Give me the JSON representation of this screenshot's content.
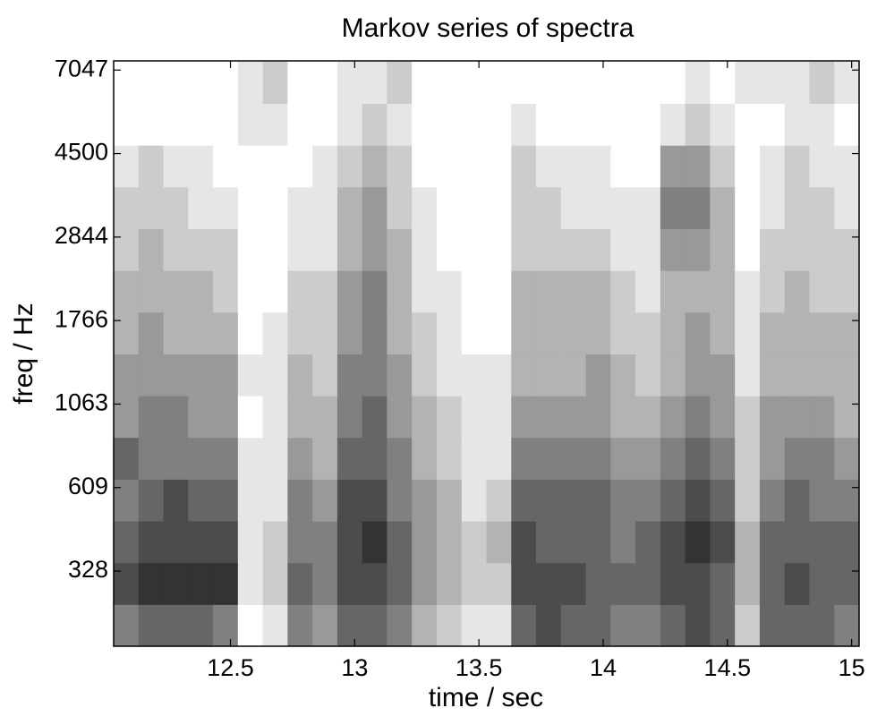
{
  "chart_data": {
    "type": "heatmap",
    "title": "Markov series of spectra",
    "xlabel": "time / sec",
    "ylabel": "freq / Hz",
    "colormap": "gray_r",
    "xlim": [
      12.03,
      15.03
    ],
    "xticks": [
      12.5,
      13,
      13.5,
      14,
      14.5,
      15
    ],
    "ylim": [
      0,
      7.01
    ],
    "yticks": [
      {
        "value": 0.9,
        "label": "328"
      },
      {
        "value": 1.9,
        "label": "609"
      },
      {
        "value": 2.9,
        "label": "1063"
      },
      {
        "value": 3.9,
        "label": "1766"
      },
      {
        "value": 4.9,
        "label": "2844"
      },
      {
        "value": 5.9,
        "label": "4500"
      },
      {
        "value": 6.9,
        "label": "7047"
      }
    ],
    "zlim": [
      0,
      9
    ],
    "x": [
      12.08,
      12.18,
      12.28,
      12.38,
      12.48,
      12.58,
      12.68,
      12.78,
      12.88,
      12.98,
      13.08,
      13.18,
      13.28,
      13.38,
      13.48,
      13.58,
      13.68,
      13.78,
      13.88,
      13.98,
      14.08,
      14.18,
      14.28,
      14.38,
      14.48,
      14.58,
      14.68,
      14.78,
      14.88,
      14.98
    ],
    "y": [
      0.25,
      0.75,
      1.25,
      1.75,
      2.25,
      2.75,
      3.25,
      3.75,
      4.25,
      4.75,
      5.25,
      5.75,
      6.25,
      6.75
    ],
    "z": [
      [
        5,
        7,
        6,
        5,
        6,
        4,
        4,
        3,
        3,
        2,
        2,
        1,
        0,
        0
      ],
      [
        6,
        8,
        7,
        6,
        5,
        5,
        4,
        4,
        3,
        3,
        2,
        2,
        0,
        0
      ],
      [
        6,
        8,
        7,
        7,
        5,
        5,
        4,
        3,
        3,
        2,
        2,
        1,
        0,
        0
      ],
      [
        6,
        8,
        7,
        6,
        5,
        4,
        4,
        3,
        3,
        2,
        1,
        1,
        0,
        0
      ],
      [
        5,
        8,
        7,
        6,
        5,
        4,
        4,
        3,
        2,
        2,
        1,
        0,
        0,
        0
      ],
      [
        0,
        1,
        1,
        1,
        1,
        0,
        1,
        0,
        0,
        0,
        0,
        0,
        1,
        1
      ],
      [
        1,
        2,
        2,
        1,
        1,
        1,
        1,
        1,
        0,
        0,
        0,
        0,
        1,
        2
      ],
      [
        5,
        6,
        5,
        5,
        4,
        3,
        3,
        2,
        2,
        1,
        1,
        0,
        0,
        0
      ],
      [
        4,
        5,
        5,
        4,
        3,
        3,
        2,
        2,
        2,
        1,
        1,
        1,
        0,
        0
      ],
      [
        6,
        7,
        7,
        7,
        6,
        5,
        5,
        4,
        4,
        3,
        3,
        2,
        1,
        1
      ],
      [
        6,
        7,
        8,
        7,
        6,
        6,
        5,
        5,
        5,
        4,
        4,
        3,
        2,
        1
      ],
      [
        5,
        6,
        6,
        5,
        5,
        4,
        4,
        3,
        3,
        3,
        2,
        2,
        1,
        2
      ],
      [
        3,
        4,
        4,
        4,
        3,
        3,
        2,
        2,
        1,
        1,
        1,
        0,
        0,
        0
      ],
      [
        2,
        3,
        3,
        3,
        2,
        2,
        1,
        1,
        1,
        0,
        0,
        0,
        0,
        0
      ],
      [
        1,
        2,
        2,
        1,
        1,
        1,
        1,
        0,
        0,
        0,
        0,
        0,
        0,
        0
      ],
      [
        1,
        2,
        3,
        2,
        1,
        1,
        1,
        0,
        0,
        0,
        0,
        0,
        0,
        0
      ],
      [
        6,
        7,
        7,
        6,
        5,
        4,
        3,
        3,
        3,
        2,
        2,
        2,
        1,
        0
      ],
      [
        7,
        7,
        6,
        6,
        5,
        4,
        3,
        3,
        3,
        2,
        2,
        1,
        0,
        0
      ],
      [
        6,
        7,
        6,
        6,
        5,
        4,
        3,
        3,
        3,
        2,
        1,
        1,
        0,
        0
      ],
      [
        6,
        6,
        6,
        6,
        5,
        4,
        4,
        3,
        3,
        2,
        1,
        1,
        0,
        0
      ],
      [
        5,
        6,
        5,
        5,
        4,
        3,
        3,
        2,
        2,
        1,
        1,
        0,
        0,
        0
      ],
      [
        5,
        6,
        6,
        5,
        4,
        3,
        2,
        2,
        1,
        1,
        1,
        0,
        0,
        0
      ],
      [
        6,
        7,
        7,
        6,
        5,
        4,
        3,
        3,
        3,
        4,
        5,
        4,
        1,
        0
      ],
      [
        7,
        7,
        8,
        7,
        6,
        5,
        4,
        4,
        3,
        4,
        5,
        4,
        2,
        1
      ],
      [
        6,
        6,
        7,
        6,
        5,
        4,
        4,
        3,
        3,
        3,
        3,
        2,
        1,
        0
      ],
      [
        2,
        3,
        3,
        2,
        2,
        2,
        1,
        1,
        1,
        0,
        0,
        0,
        0,
        1
      ],
      [
        6,
        6,
        6,
        5,
        4,
        4,
        3,
        3,
        2,
        2,
        1,
        1,
        0,
        1
      ],
      [
        6,
        7,
        6,
        6,
        5,
        4,
        3,
        3,
        3,
        2,
        2,
        2,
        1,
        1
      ],
      [
        6,
        6,
        6,
        5,
        5,
        4,
        3,
        3,
        2,
        2,
        2,
        1,
        1,
        2
      ],
      [
        5,
        6,
        6,
        5,
        4,
        3,
        3,
        3,
        2,
        2,
        1,
        1,
        0,
        1
      ]
    ]
  }
}
